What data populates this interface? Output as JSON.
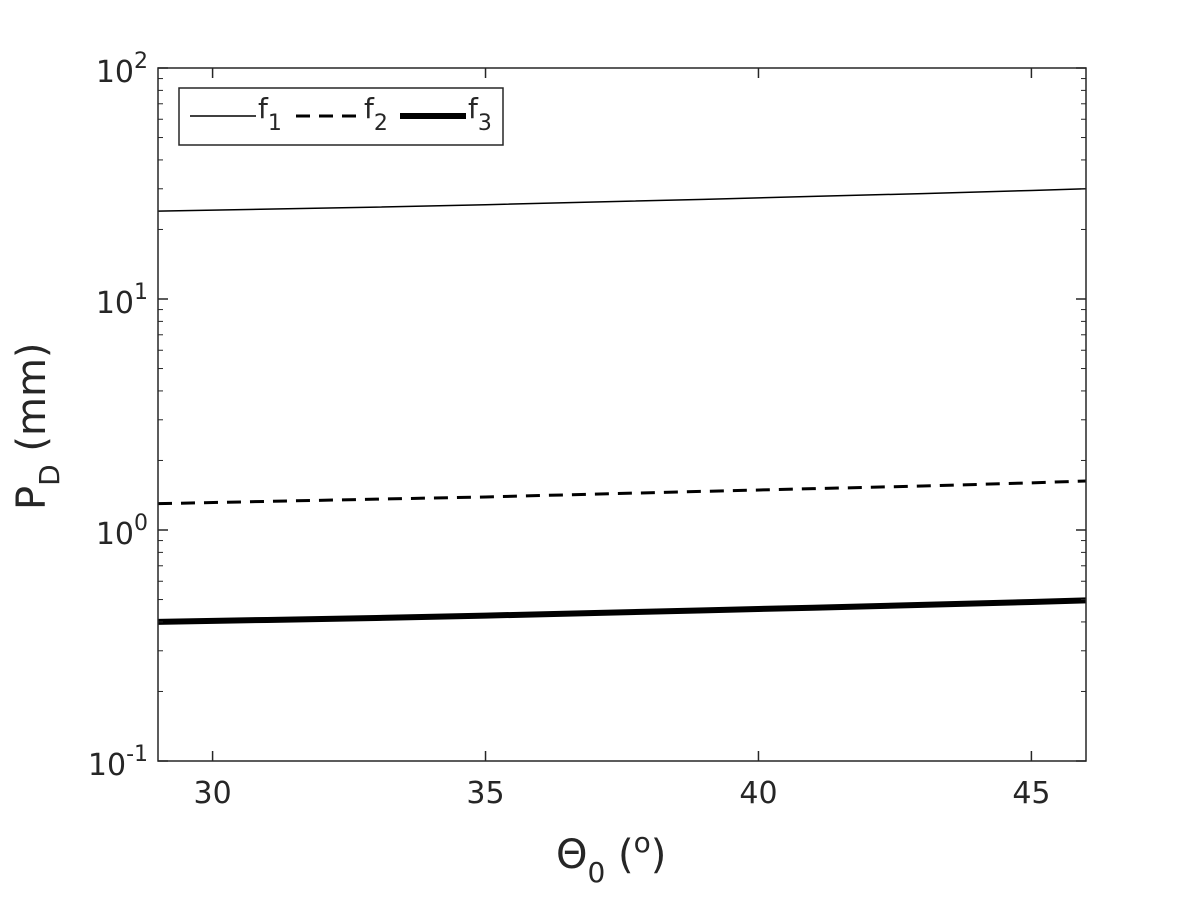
{
  "chart_data": {
    "type": "line",
    "xlabel": {
      "main": "Θ",
      "sub": "0",
      "rest_open": " (",
      "sup": "o",
      "rest_close": ")"
    },
    "ylabel": {
      "main": "P",
      "sub": "D",
      "rest": " (mm)"
    },
    "x": [
      29,
      31,
      33,
      35,
      37,
      39,
      41,
      43,
      45,
      46
    ],
    "xlim": [
      29,
      46
    ],
    "ylim": [
      0.1,
      100
    ],
    "yscale": "log",
    "xticks": [
      30,
      35,
      40,
      45
    ],
    "yticks": [
      {
        "value": 0.1,
        "base": "10",
        "exp": "-1"
      },
      {
        "value": 1,
        "base": "10",
        "exp": "0"
      },
      {
        "value": 10,
        "base": "10",
        "exp": "1"
      },
      {
        "value": 100,
        "base": "10",
        "exp": "2"
      }
    ],
    "grid": false,
    "box": true,
    "legend_position": "top-left",
    "series": [
      {
        "name": "f",
        "sub": "1",
        "style": "solid-thin",
        "values": [
          24.0,
          24.5,
          25.0,
          25.6,
          26.3,
          27.0,
          27.8,
          28.6,
          29.5,
          30.0
        ]
      },
      {
        "name": "f",
        "sub": "2",
        "style": "dashed",
        "values": [
          1.3,
          1.33,
          1.36,
          1.39,
          1.43,
          1.47,
          1.51,
          1.55,
          1.6,
          1.63
        ]
      },
      {
        "name": "f",
        "sub": "3",
        "style": "solid-thick",
        "values": [
          0.4,
          0.408,
          0.416,
          0.426,
          0.437,
          0.449,
          0.461,
          0.474,
          0.488,
          0.496
        ]
      }
    ]
  }
}
